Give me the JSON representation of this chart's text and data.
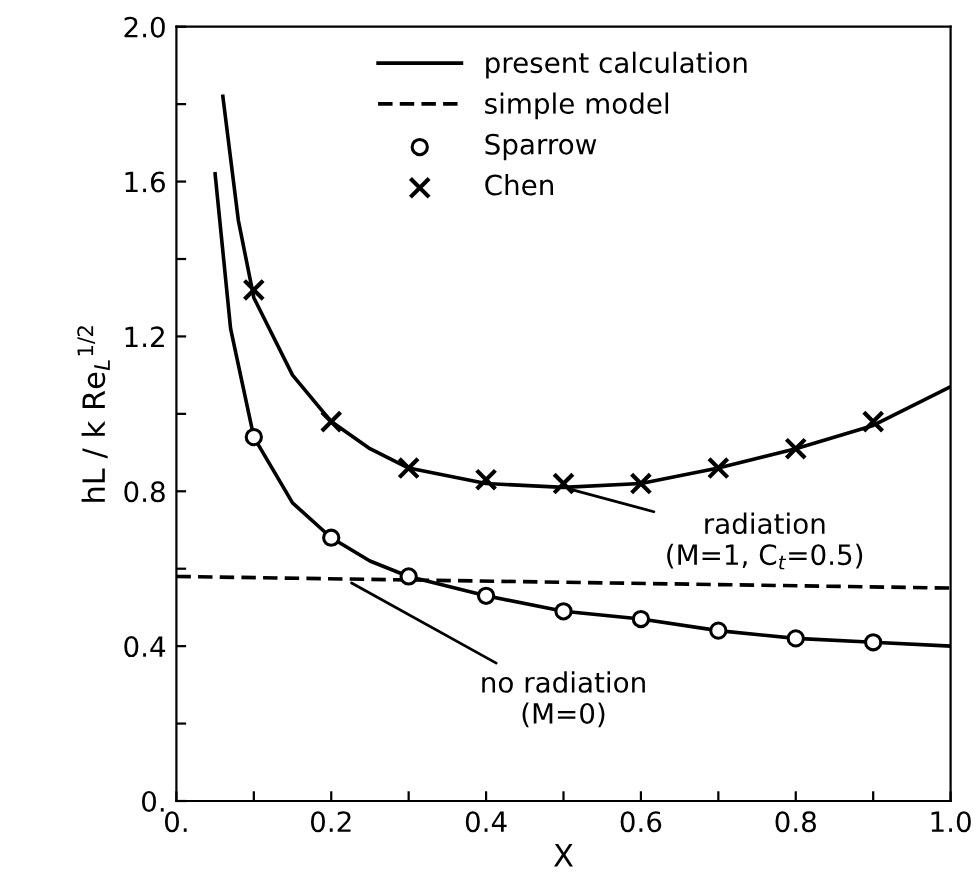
{
  "chart_data": {
    "type": "line",
    "xlabel": "X",
    "ylabel": "hL / k Re$_{L}$$^{1/2}$",
    "xlim": [
      0,
      1.0
    ],
    "ylim": [
      0,
      2.0
    ],
    "xticks": [
      {
        "value": 0,
        "label": "0."
      },
      {
        "value": 0.1,
        "label": null
      },
      {
        "value": 0.2,
        "label": "0.2"
      },
      {
        "value": 0.3,
        "label": null
      },
      {
        "value": 0.4,
        "label": "0.4"
      },
      {
        "value": 0.5,
        "label": null
      },
      {
        "value": 0.6,
        "label": "0.6"
      },
      {
        "value": 0.7,
        "label": null
      },
      {
        "value": 0.8,
        "label": "0.8"
      },
      {
        "value": 0.9,
        "label": null
      },
      {
        "value": 1.0,
        "label": "1.0"
      }
    ],
    "yticks": [
      {
        "value": 0,
        "label": "0."
      },
      {
        "value": 0.2,
        "label": null
      },
      {
        "value": 0.4,
        "label": "0.4"
      },
      {
        "value": 0.6,
        "label": null
      },
      {
        "value": 0.8,
        "label": "0.8"
      },
      {
        "value": 1.0,
        "label": null
      },
      {
        "value": 1.2,
        "label": "1.2"
      },
      {
        "value": 1.4,
        "label": null
      },
      {
        "value": 1.6,
        "label": "1.6"
      },
      {
        "value": 1.8,
        "label": null
      },
      {
        "value": 2.0,
        "label": "2.0"
      }
    ],
    "legend": "top",
    "grid": false,
    "series": [
      {
        "name": "present calculation",
        "color": "#000000",
        "line_style": "solid",
        "marker": "none",
        "x": [
          0.05,
          0.07,
          0.1,
          0.15,
          0.2,
          0.25,
          0.3,
          0.4,
          0.5,
          0.6,
          0.7,
          0.8,
          0.9,
          1.0
        ],
        "values": [
          1.62,
          1.22,
          0.94,
          0.77,
          0.68,
          0.62,
          0.58,
          0.53,
          0.49,
          0.47,
          0.44,
          0.42,
          0.41,
          0.4
        ]
      },
      {
        "color": "#000000",
        "line_style": "solid",
        "marker": "none",
        "x": [
          0.06,
          0.08,
          0.1,
          0.15,
          0.2,
          0.25,
          0.3,
          0.4,
          0.5,
          0.6,
          0.7,
          0.8,
          0.9,
          1.0
        ],
        "values": [
          1.82,
          1.5,
          1.3,
          1.1,
          0.98,
          0.91,
          0.86,
          0.82,
          0.81,
          0.82,
          0.86,
          0.91,
          0.97,
          1.07
        ]
      },
      {
        "name": "simple model",
        "color": "#000000",
        "line_style": "dashed",
        "marker": "none",
        "x": [
          0,
          1.0
        ],
        "values": [
          0.58,
          0.55
        ]
      },
      {
        "name": "Sparrow",
        "type": "scatter",
        "color": "#000000",
        "marker": "circle",
        "x": [
          0.1,
          0.2,
          0.3,
          0.4,
          0.5,
          0.6,
          0.7,
          0.8,
          0.9
        ],
        "values": [
          0.94,
          0.68,
          0.58,
          0.53,
          0.49,
          0.47,
          0.44,
          0.42,
          0.41
        ]
      },
      {
        "name": "Chen",
        "type": "scatter",
        "color": "#000000",
        "marker": "cross",
        "x": [
          0.1,
          0.2,
          0.3,
          0.4,
          0.5,
          0.6,
          0.7,
          0.8,
          0.9
        ],
        "values": [
          1.32,
          0.98,
          0.86,
          0.83,
          0.82,
          0.82,
          0.86,
          0.91,
          0.98
        ]
      }
    ],
    "annotations": [
      {
        "text": "radiation\n(M=1, C$_{t}$=0.5)",
        "x": 0.5,
        "y": 0.81
      },
      {
        "text": "no radiation\n(M=0)",
        "x": 0.22,
        "y": 0.57
      }
    ]
  }
}
